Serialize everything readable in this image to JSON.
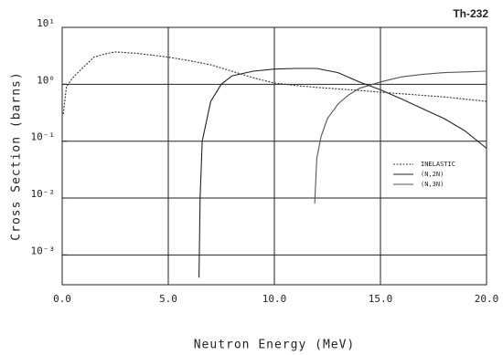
{
  "chart_data": {
    "type": "line",
    "title": "Th-232",
    "xlabel": "Neutron Energy (MeV)",
    "ylabel": "Cross Section (barns)",
    "xlim": [
      0,
      20
    ],
    "ylim": [
      0.0003,
      10
    ],
    "log_y": true,
    "grid": true,
    "legend": "right",
    "xticks": [
      {
        "value": 0,
        "label": "0.0"
      },
      {
        "value": 5,
        "label": "5.0"
      },
      {
        "value": 10,
        "label": "10.0"
      },
      {
        "value": 15,
        "label": "15.0"
      },
      {
        "value": 20,
        "label": "20.0"
      }
    ],
    "yticks": [
      {
        "value": 10,
        "label": "10¹"
      },
      {
        "value": 1,
        "label": "10⁰"
      },
      {
        "value": 0.1,
        "label": "10⁻¹"
      },
      {
        "value": 0.01,
        "label": "10⁻²"
      },
      {
        "value": 0.001,
        "label": "10⁻³"
      }
    ],
    "series": [
      {
        "name": "INELASTIC",
        "color": "#333333",
        "style": "dotted",
        "x": [
          0.05,
          0.2,
          0.5,
          1.0,
          1.5,
          2.0,
          2.5,
          3.5,
          5,
          6,
          7,
          8,
          9,
          10,
          11,
          12,
          14,
          16,
          18,
          20
        ],
        "values": [
          0.3,
          0.9,
          1.3,
          2.0,
          3.0,
          3.4,
          3.7,
          3.5,
          3.0,
          2.6,
          2.2,
          1.7,
          1.3,
          1.05,
          0.95,
          0.88,
          0.78,
          0.68,
          0.6,
          0.5
        ]
      },
      {
        "name": "(N,2N)",
        "color": "#222222",
        "style": "solid",
        "x": [
          6.45,
          6.5,
          6.6,
          7,
          7.5,
          8,
          9,
          10,
          11,
          12,
          13,
          14,
          15,
          16,
          17,
          18,
          19,
          20
        ],
        "values": [
          0.0004,
          0.01,
          0.1,
          0.5,
          1.0,
          1.4,
          1.7,
          1.85,
          1.9,
          1.9,
          1.6,
          1.1,
          0.8,
          0.55,
          0.37,
          0.25,
          0.15,
          0.075
        ]
      },
      {
        "name": "(N,3N)",
        "color": "#555555",
        "style": "solid",
        "x": [
          11.9,
          12.0,
          12.2,
          12.5,
          13,
          13.5,
          14,
          15,
          16,
          17,
          18,
          19,
          20
        ],
        "values": [
          0.008,
          0.05,
          0.12,
          0.25,
          0.45,
          0.65,
          0.85,
          1.1,
          1.35,
          1.5,
          1.6,
          1.65,
          1.7
        ]
      }
    ]
  }
}
